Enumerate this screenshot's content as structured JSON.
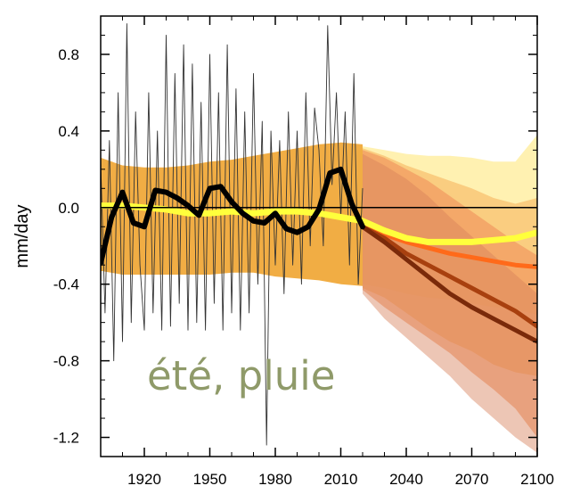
{
  "chart_data": {
    "type": "line",
    "title": "",
    "xlabel": "",
    "ylabel": "mm/day",
    "xlim": [
      1900,
      2100
    ],
    "ylim": [
      -1.3,
      1.0
    ],
    "x_ticks": [
      1920,
      1950,
      1980,
      2010,
      2040,
      2070,
      2100
    ],
    "y_ticks": [
      0.8,
      0.4,
      0.0,
      -0.4,
      -0.8,
      -1.2
    ],
    "y_tick_labels": [
      "0.8",
      "0.4",
      "0.0",
      "-0.4",
      "-0.8",
      "-1.2"
    ],
    "annotation": "été, pluie",
    "grid": false,
    "colors": {
      "historical_band": "#f0a93a",
      "obs_thin": "#333333",
      "obs_smooth": "#000000",
      "low_scenario": "#ffff3c",
      "mid_scenario": "#ff6a1a",
      "high_scenario": "#a8400f",
      "very_high_scenario": "#7a2a0a"
    },
    "historical_band": {
      "x": [
        1900,
        1910,
        1920,
        1930,
        1940,
        1950,
        1960,
        1970,
        1980,
        1990,
        2000,
        2010,
        2020
      ],
      "upper": [
        0.26,
        0.22,
        0.21,
        0.21,
        0.22,
        0.24,
        0.25,
        0.27,
        0.29,
        0.31,
        0.33,
        0.34,
        0.33
      ],
      "lower": [
        -0.33,
        -0.35,
        -0.35,
        -0.35,
        -0.35,
        -0.35,
        -0.34,
        -0.34,
        -0.36,
        -0.37,
        -0.38,
        -0.4,
        -0.41
      ]
    },
    "scenario_bands": [
      {
        "x": [
          2020,
          2030,
          2040,
          2050,
          2060,
          2070,
          2080,
          2090,
          2100
        ],
        "upper": [
          0.32,
          0.3,
          0.28,
          0.27,
          0.27,
          0.26,
          0.24,
          0.24,
          0.38
        ],
        "lower": [
          -0.4,
          -0.42,
          -0.45,
          -0.47,
          -0.48,
          -0.5,
          -0.52,
          -0.53,
          -0.56
        ]
      },
      {
        "x": [
          2020,
          2030,
          2040,
          2050,
          2060,
          2070,
          2080,
          2090,
          2100
        ],
        "upper": [
          0.31,
          0.27,
          0.22,
          0.18,
          0.14,
          0.1,
          0.05,
          0.02,
          0.05
        ],
        "lower": [
          -0.42,
          -0.47,
          -0.55,
          -0.63,
          -0.7,
          -0.75,
          -0.82,
          -0.86,
          -0.88
        ]
      },
      {
        "x": [
          2020,
          2030,
          2040,
          2050,
          2060,
          2070,
          2080,
          2090,
          2100
        ],
        "upper": [
          0.3,
          0.26,
          0.2,
          0.14,
          0.06,
          -0.02,
          -0.1,
          -0.18,
          -0.25
        ],
        "lower": [
          -0.43,
          -0.52,
          -0.6,
          -0.68,
          -0.76,
          -0.86,
          -0.95,
          -1.05,
          -1.2
        ]
      },
      {
        "x": [
          2020,
          2030,
          2040,
          2050,
          2060,
          2070,
          2080,
          2090,
          2100
        ],
        "upper": [
          0.28,
          0.22,
          0.15,
          0.06,
          -0.05,
          -0.15,
          -0.25,
          -0.35,
          -0.45
        ],
        "lower": [
          -0.45,
          -0.58,
          -0.68,
          -0.78,
          -0.88,
          -1.0,
          -1.1,
          -1.2,
          -1.28
        ]
      }
    ],
    "series": [
      {
        "key": "low",
        "x": [
          1900,
          1910,
          1920,
          1930,
          1940,
          1950,
          1960,
          1970,
          1980,
          1990,
          2000,
          2010,
          2020,
          2030,
          2040,
          2050,
          2060,
          2070,
          2080,
          2090,
          2100
        ],
        "values": [
          0.01,
          0.01,
          0.0,
          -0.01,
          -0.03,
          -0.03,
          -0.02,
          -0.03,
          -0.02,
          -0.02,
          -0.03,
          -0.05,
          -0.07,
          -0.12,
          -0.16,
          -0.18,
          -0.18,
          -0.18,
          -0.17,
          -0.16,
          -0.13
        ]
      },
      {
        "key": "mid",
        "x": [
          2020,
          2030,
          2040,
          2050,
          2060,
          2070,
          2080,
          2090,
          2100
        ],
        "values": [
          -0.1,
          -0.14,
          -0.18,
          -0.21,
          -0.24,
          -0.26,
          -0.28,
          -0.3,
          -0.31
        ]
      },
      {
        "key": "high",
        "x": [
          2020,
          2030,
          2040,
          2050,
          2060,
          2070,
          2080,
          2090,
          2100
        ],
        "values": [
          -0.1,
          -0.16,
          -0.24,
          -0.3,
          -0.36,
          -0.42,
          -0.48,
          -0.54,
          -0.62
        ]
      },
      {
        "key": "very_high",
        "x": [
          2020,
          2030,
          2040,
          2050,
          2060,
          2070,
          2080,
          2090,
          2100
        ],
        "values": [
          -0.1,
          -0.18,
          -0.27,
          -0.36,
          -0.45,
          -0.52,
          -0.58,
          -0.64,
          -0.7
        ]
      },
      {
        "key": "obs_smooth",
        "x": [
          1900,
          1905,
          1910,
          1915,
          1920,
          1925,
          1930,
          1935,
          1940,
          1945,
          1950,
          1955,
          1960,
          1965,
          1970,
          1975,
          1980,
          1985,
          1990,
          1995,
          2000,
          2005,
          2010,
          2015,
          2020
        ],
        "values": [
          -0.29,
          -0.05,
          0.08,
          -0.08,
          -0.1,
          0.09,
          0.08,
          0.05,
          0.01,
          -0.04,
          0.1,
          0.11,
          0.03,
          -0.03,
          -0.07,
          -0.08,
          -0.03,
          -0.11,
          -0.13,
          -0.1,
          -0.01,
          0.18,
          0.2,
          0.02,
          -0.1
        ]
      },
      {
        "key": "obs_thin",
        "x": [
          1900,
          1902,
          1904,
          1906,
          1908,
          1910,
          1912,
          1914,
          1916,
          1918,
          1920,
          1922,
          1924,
          1926,
          1928,
          1930,
          1932,
          1934,
          1936,
          1938,
          1940,
          1942,
          1944,
          1946,
          1948,
          1950,
          1952,
          1954,
          1956,
          1958,
          1960,
          1962,
          1964,
          1966,
          1968,
          1970,
          1972,
          1974,
          1976,
          1978,
          1980,
          1982,
          1984,
          1986,
          1988,
          1990,
          1992,
          1994,
          1996,
          1998,
          2000,
          2002,
          2004,
          2006,
          2008,
          2010,
          2012,
          2014,
          2016,
          2018,
          2020
        ],
        "values": [
          0.24,
          -0.55,
          0.35,
          -0.8,
          0.6,
          -0.7,
          0.96,
          -0.6,
          0.5,
          -0.3,
          -0.64,
          0.6,
          -0.55,
          0.4,
          -0.64,
          0.9,
          -0.62,
          0.7,
          -0.5,
          0.85,
          -0.64,
          0.75,
          -0.6,
          0.55,
          -0.64,
          0.8,
          -0.5,
          0.6,
          -0.64,
          0.85,
          -0.55,
          0.62,
          -0.64,
          0.5,
          -0.55,
          0.7,
          -0.4,
          0.45,
          -1.24,
          0.4,
          -0.3,
          0.35,
          -0.45,
          0.5,
          -0.3,
          0.4,
          -0.4,
          0.6,
          -0.2,
          0.52,
          0.3,
          -0.2,
          0.95,
          0.12,
          0.6,
          -0.05,
          0.5,
          -0.3,
          0.7,
          -0.4,
          0.1
        ]
      }
    ]
  }
}
